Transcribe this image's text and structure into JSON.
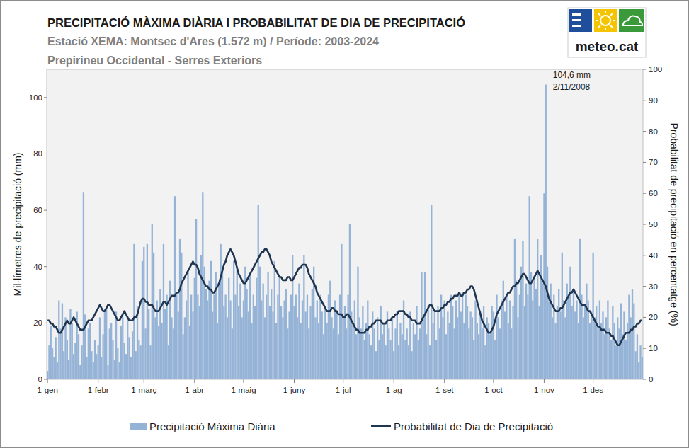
{
  "chart_data": {
    "type": "bar",
    "title": "PRECIPITACIÓ MÀXIMA DIÀRIA I PROBABILITAT DE DIA DE PRECIPITACIÓ",
    "subtitle": "Estació XEMA: Montsec d'Ares (1.572 m) /  Període: 2003-2024",
    "subtitle2": "Prepirineu Occidental - Serres Exteriors",
    "logo": "meteo.cat",
    "y_label": "Mil·límetres de precipitació (mm)",
    "y2_label": "Probabilitat de precipitació en percentatge (%)",
    "annotation": [
      "104,6 mm",
      "2/11/2008"
    ],
    "grid": false,
    "legend": "bottom",
    "xlim": [
      -0.5,
      364.5
    ],
    "xticks": [
      {
        "value": 0,
        "label": "1-gen"
      },
      {
        "value": 31,
        "label": "1-febr"
      },
      {
        "value": 59,
        "label": "1-març"
      },
      {
        "value": 90,
        "label": "1-abr"
      },
      {
        "value": 120,
        "label": "1-maig"
      },
      {
        "value": 151,
        "label": "1-juny"
      },
      {
        "value": 181,
        "label": "1-jul"
      },
      {
        "value": 212,
        "label": "1-ag"
      },
      {
        "value": 243,
        "label": "1-set"
      },
      {
        "value": 273,
        "label": "1-oct"
      },
      {
        "value": 304,
        "label": "1-nov"
      },
      {
        "value": 334,
        "label": "1-des"
      }
    ],
    "ylim": [
      0,
      110
    ],
    "yticks": [
      0,
      20,
      40,
      60,
      80,
      100
    ],
    "y2lim": [
      0,
      100
    ],
    "y2ticks": [
      0,
      10,
      20,
      30,
      40,
      50,
      60,
      70,
      80,
      90,
      100
    ],
    "x": [
      0,
      1,
      2,
      3,
      4,
      5,
      6,
      7,
      8,
      9,
      10,
      11,
      12,
      13,
      14,
      15,
      16,
      17,
      18,
      19,
      20,
      21,
      22,
      23,
      24,
      25,
      26,
      27,
      28,
      29,
      30,
      31,
      32,
      33,
      34,
      35,
      36,
      37,
      38,
      39,
      40,
      41,
      42,
      43,
      44,
      45,
      46,
      47,
      48,
      49,
      50,
      51,
      52,
      53,
      54,
      55,
      56,
      57,
      58,
      59,
      60,
      61,
      62,
      63,
      64,
      65,
      66,
      67,
      68,
      69,
      70,
      71,
      72,
      73,
      74,
      75,
      76,
      77,
      78,
      79,
      80,
      81,
      82,
      83,
      84,
      85,
      86,
      87,
      88,
      89,
      90,
      91,
      92,
      93,
      94,
      95,
      96,
      97,
      98,
      99,
      100,
      101,
      102,
      103,
      104,
      105,
      106,
      107,
      108,
      109,
      110,
      111,
      112,
      113,
      114,
      115,
      116,
      117,
      118,
      119,
      120,
      121,
      122,
      123,
      124,
      125,
      126,
      127,
      128,
      129,
      130,
      131,
      132,
      133,
      134,
      135,
      136,
      137,
      138,
      139,
      140,
      141,
      142,
      143,
      144,
      145,
      146,
      147,
      148,
      149,
      150,
      151,
      152,
      153,
      154,
      155,
      156,
      157,
      158,
      159,
      160,
      161,
      162,
      163,
      164,
      165,
      166,
      167,
      168,
      169,
      170,
      171,
      172,
      173,
      174,
      175,
      176,
      177,
      178,
      179,
      180,
      181,
      182,
      183,
      184,
      185,
      186,
      187,
      188,
      189,
      190,
      191,
      192,
      193,
      194,
      195,
      196,
      197,
      198,
      199,
      200,
      201,
      202,
      203,
      204,
      205,
      206,
      207,
      208,
      209,
      210,
      211,
      212,
      213,
      214,
      215,
      216,
      217,
      218,
      219,
      220,
      221,
      222,
      223,
      224,
      225,
      226,
      227,
      228,
      229,
      230,
      231,
      232,
      233,
      234,
      235,
      236,
      237,
      238,
      239,
      240,
      241,
      242,
      243,
      244,
      245,
      246,
      247,
      248,
      249,
      250,
      251,
      252,
      253,
      254,
      255,
      256,
      257,
      258,
      259,
      260,
      261,
      262,
      263,
      264,
      265,
      266,
      267,
      268,
      269,
      270,
      271,
      272,
      273,
      274,
      275,
      276,
      277,
      278,
      279,
      280,
      281,
      282,
      283,
      284,
      285,
      286,
      287,
      288,
      289,
      290,
      291,
      292,
      293,
      294,
      295,
      296,
      297,
      298,
      299,
      300,
      301,
      302,
      303,
      304,
      305,
      306,
      307,
      308,
      309,
      310,
      311,
      312,
      313,
      314,
      315,
      316,
      317,
      318,
      319,
      320,
      321,
      322,
      323,
      324,
      325,
      326,
      327,
      328,
      329,
      330,
      331,
      332,
      333,
      334,
      335,
      336,
      337,
      338,
      339,
      340,
      341,
      342,
      343,
      344,
      345,
      346,
      347,
      348,
      349,
      350,
      351,
      352,
      353,
      354,
      355,
      356,
      357,
      358,
      359,
      360,
      361,
      362,
      363,
      364
    ],
    "series": [
      {
        "name": "Precipitació Màxima Diària",
        "type": "bar",
        "axis": "y",
        "color": "#95b3d7",
        "values": [
          3,
          12,
          19,
          11,
          8,
          15,
          6,
          28,
          18,
          27,
          10,
          22,
          14,
          7,
          25,
          20,
          9,
          13,
          24,
          16,
          5,
          12,
          66.5,
          23,
          8,
          18,
          20,
          10,
          6,
          14,
          9,
          12,
          22,
          8,
          16,
          25,
          26,
          5,
          18,
          20,
          14,
          7,
          24,
          11,
          6,
          19,
          22,
          13,
          9,
          21,
          15,
          8,
          17,
          48,
          10,
          26,
          14,
          12,
          42,
          47,
          18,
          48,
          25,
          12,
          55,
          45,
          22,
          28,
          19,
          32,
          20,
          48,
          25,
          30,
          12,
          35,
          22,
          18,
          65,
          30,
          24,
          50,
          45,
          16,
          22,
          28,
          38,
          19,
          30,
          24,
          36,
          57,
          30,
          26,
          44,
          66.5,
          40,
          32,
          28,
          35,
          42,
          24,
          30,
          38,
          20,
          34,
          48,
          40,
          26,
          30,
          22,
          36,
          28,
          18,
          42,
          30,
          40,
          26,
          34,
          22,
          28,
          40,
          32,
          24,
          38,
          20,
          30,
          26,
          36,
          62,
          40,
          28,
          34,
          22,
          30,
          38,
          26,
          32,
          24,
          42,
          20,
          30,
          36,
          26,
          22,
          28,
          32,
          18,
          24,
          30,
          44,
          26,
          30,
          22,
          34,
          20,
          28,
          44,
          24,
          30,
          18,
          26,
          32,
          40,
          22,
          28,
          20,
          30,
          24,
          16,
          26,
          20,
          30,
          35,
          22,
          18,
          28,
          24,
          16,
          30,
          48,
          22,
          26,
          18,
          30,
          55,
          24,
          20,
          28,
          16,
          40,
          22,
          18,
          26,
          14,
          20,
          28,
          16,
          12,
          24,
          18,
          10,
          22,
          14,
          26,
          16,
          20,
          12,
          24,
          18,
          14,
          22,
          10,
          18,
          24,
          12,
          20,
          16,
          28,
          14,
          18,
          12,
          24,
          10,
          20,
          16,
          26,
          14,
          18,
          38,
          22,
          38,
          16,
          26,
          12,
          62,
          20,
          24,
          14,
          26,
          18,
          30,
          22,
          28,
          16,
          24,
          20,
          30,
          26,
          18,
          28,
          22,
          30,
          24,
          31,
          20,
          30,
          26,
          18,
          24,
          22,
          14,
          28,
          20,
          16,
          24,
          18,
          26,
          12,
          22,
          20,
          16,
          26,
          24,
          14,
          30,
          22,
          18,
          28,
          35,
          24,
          30,
          20,
          28,
          18,
          26,
          50,
          35,
          22,
          30,
          40,
          49,
          26,
          34,
          30,
          65,
          38,
          28,
          36,
          32,
          50,
          26,
          44,
          34,
          66,
          104.6,
          40,
          28,
          34,
          22,
          30,
          20,
          26,
          32,
          24,
          45,
          28,
          22,
          34,
          30,
          40,
          26,
          32,
          24,
          28,
          20,
          50,
          30,
          22,
          26,
          34,
          28,
          20,
          24,
          45,
          22,
          26,
          18,
          28,
          20,
          24,
          16,
          22,
          28,
          18,
          14,
          26,
          20,
          12,
          22,
          18,
          27,
          16,
          24,
          14,
          20,
          30,
          22,
          32,
          27,
          10,
          16,
          6,
          12,
          8
        ]
      },
      {
        "name": "Probabilitat de Dia de Precipitació",
        "type": "line",
        "axis": "y2",
        "color": "#1f3550",
        "line_style": "solid",
        "values": [
          19,
          19,
          18,
          18,
          17,
          17,
          16,
          15,
          15,
          16,
          17,
          18,
          19,
          18,
          18,
          19,
          20,
          19,
          18,
          17,
          16,
          16,
          16,
          17,
          18,
          19,
          19,
          19,
          20,
          21,
          22,
          23,
          24,
          23,
          22,
          22,
          23,
          24,
          24,
          23,
          22,
          21,
          20,
          19,
          19,
          20,
          21,
          22,
          21,
          20,
          19,
          19,
          19,
          20,
          20,
          21,
          23,
          25,
          26,
          26,
          25,
          25,
          24,
          24,
          24,
          23,
          22,
          22,
          22,
          23,
          24,
          25,
          25,
          24,
          25,
          26,
          27,
          27,
          27,
          28,
          28,
          29,
          31,
          32,
          33,
          34,
          35,
          36,
          37,
          38,
          37,
          37,
          36,
          34,
          33,
          32,
          31,
          30,
          30,
          29,
          29,
          28,
          28,
          29,
          30,
          31,
          33,
          35,
          37,
          38,
          40,
          41,
          42,
          41,
          40,
          38,
          36,
          34,
          33,
          32,
          31,
          31,
          32,
          33,
          34,
          35,
          36,
          37,
          38,
          39,
          40,
          41,
          41,
          42,
          42,
          41,
          40,
          38,
          37,
          36,
          35,
          34,
          33,
          33,
          32,
          32,
          32,
          33,
          33,
          32,
          32,
          33,
          34,
          35,
          36,
          36,
          37,
          37,
          37,
          36,
          34,
          33,
          32,
          31,
          30,
          28,
          27,
          26,
          25,
          24,
          23,
          22,
          22,
          22,
          23,
          23,
          22,
          22,
          21,
          21,
          21,
          20,
          20,
          21,
          21,
          20,
          19,
          18,
          17,
          16,
          16,
          15,
          15,
          15,
          15,
          16,
          16,
          17,
          17,
          18,
          18,
          19,
          19,
          19,
          19,
          18,
          18,
          18,
          19,
          19,
          19,
          20,
          20,
          21,
          21,
          22,
          22,
          22,
          22,
          21,
          21,
          20,
          20,
          19,
          19,
          19,
          18,
          18,
          18,
          19,
          20,
          21,
          22,
          23,
          24,
          24,
          23,
          22,
          22,
          22,
          22,
          23,
          23,
          24,
          24,
          25,
          25,
          26,
          26,
          27,
          27,
          27,
          28,
          27,
          27,
          28,
          28,
          29,
          29,
          30,
          30,
          29,
          27,
          25,
          23,
          21,
          19,
          18,
          17,
          16,
          15,
          15,
          16,
          17,
          19,
          21,
          22,
          23,
          24,
          25,
          26,
          27,
          28,
          28,
          29,
          30,
          30,
          31,
          31,
          32,
          33,
          34,
          34,
          33,
          32,
          31,
          31,
          32,
          33,
          34,
          35,
          34,
          33,
          32,
          31,
          30,
          28,
          26,
          25,
          24,
          23,
          22,
          22,
          22,
          23,
          23,
          24,
          25,
          26,
          27,
          28,
          28,
          29,
          28,
          27,
          26,
          25,
          24,
          24,
          24,
          23,
          22,
          22,
          21,
          20,
          19,
          18,
          17,
          17,
          16,
          16,
          16,
          15,
          15,
          15,
          14,
          14,
          13,
          12,
          11,
          11,
          12,
          13,
          14,
          15,
          15,
          15,
          16,
          16,
          17,
          17,
          18,
          18,
          19,
          19
        ]
      }
    ]
  }
}
